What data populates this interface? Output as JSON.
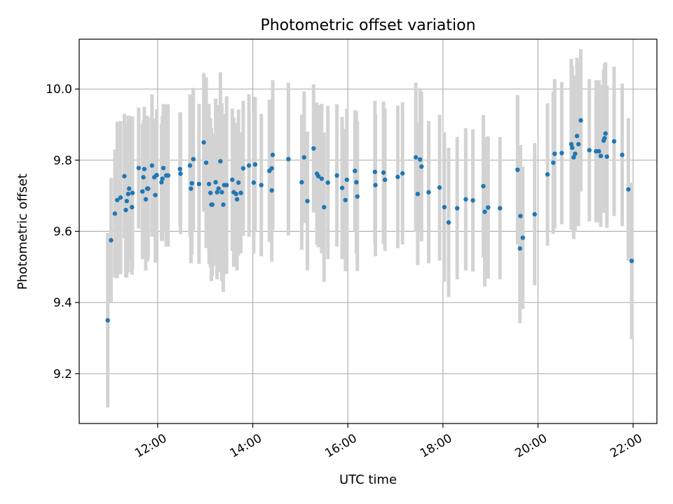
{
  "chart_data": {
    "type": "scatter",
    "title": "Photometric offset variation",
    "xlabel": "UTC time",
    "ylabel": "Photometric offset",
    "x_unit": "hours UTC (decimal)",
    "xlim": [
      10.35,
      22.5
    ],
    "ylim": [
      9.06,
      10.14
    ],
    "x_ticks": [
      {
        "value": 12,
        "label": "12:00"
      },
      {
        "value": 14,
        "label": "14:00"
      },
      {
        "value": 16,
        "label": "16:00"
      },
      {
        "value": 18,
        "label": "18:00"
      },
      {
        "value": 20,
        "label": "20:00"
      },
      {
        "value": 22,
        "label": "22:00"
      }
    ],
    "y_ticks": [
      {
        "value": 9.2,
        "label": "9.2"
      },
      {
        "value": 9.4,
        "label": "9.4"
      },
      {
        "value": 9.6,
        "label": "9.6"
      },
      {
        "value": 9.8,
        "label": "9.8"
      },
      {
        "value": 10.0,
        "label": "10.0"
      }
    ],
    "grid": true,
    "colors": {
      "point": "#1f77b4",
      "errorbar": "#d3d3d3",
      "grid": "#b0b0b0"
    },
    "series": [
      {
        "points": [
          [
            10.95,
            9.35,
            0.245
          ],
          [
            11.02,
            9.575,
            0.175
          ],
          [
            11.1,
            9.65,
            0.18
          ],
          [
            11.15,
            9.688,
            0.22
          ],
          [
            11.22,
            9.695,
            0.215
          ],
          [
            11.3,
            9.755,
            0.175
          ],
          [
            11.33,
            9.66,
            0.19
          ],
          [
            11.35,
            9.685,
            0.215
          ],
          [
            11.38,
            9.705,
            0.22
          ],
          [
            11.4,
            9.72,
            0.205
          ],
          [
            11.46,
            9.668,
            0.19
          ],
          [
            11.47,
            9.708,
            0.215
          ],
          [
            11.6,
            9.778,
            0.17
          ],
          [
            11.68,
            9.712,
            0.19
          ],
          [
            11.7,
            9.752,
            0.16
          ],
          [
            11.72,
            9.775,
            0.175
          ],
          [
            11.75,
            9.69,
            0.2
          ],
          [
            11.78,
            9.72,
            0.205
          ],
          [
            11.8,
            9.72,
            0.2
          ],
          [
            11.88,
            9.785,
            0.2
          ],
          [
            11.93,
            9.752,
            0.165
          ],
          [
            11.95,
            9.702,
            0.19
          ],
          [
            11.98,
            9.758,
            0.185
          ],
          [
            12.08,
            9.738,
            0.165
          ],
          [
            12.1,
            9.748,
            0.175
          ],
          [
            12.12,
            9.778,
            0.18
          ],
          [
            12.18,
            9.757,
            0.2
          ],
          [
            12.22,
            9.757,
            0.2
          ],
          [
            12.47,
            9.775,
            0.16
          ],
          [
            12.48,
            9.762,
            0.17
          ],
          [
            12.68,
            9.785,
            0.2
          ],
          [
            12.7,
            9.72,
            0.21
          ],
          [
            12.72,
            9.735,
            0.2
          ],
          [
            12.75,
            9.803,
            0.2
          ],
          [
            12.87,
            9.733,
            0.225
          ],
          [
            12.97,
            9.85,
            0.195
          ],
          [
            13.02,
            9.793,
            0.24
          ],
          [
            13.08,
            9.733,
            0.225
          ],
          [
            13.11,
            9.708,
            0.21
          ],
          [
            13.13,
            9.675,
            0.215
          ],
          [
            13.15,
            9.675,
            0.2
          ],
          [
            13.22,
            9.738,
            0.235
          ],
          [
            13.25,
            9.71,
            0.245
          ],
          [
            13.28,
            9.72,
            0.235
          ],
          [
            13.32,
            9.797,
            0.25
          ],
          [
            13.35,
            9.71,
            0.25
          ],
          [
            13.38,
            9.675,
            0.245
          ],
          [
            13.4,
            9.73,
            0.2
          ],
          [
            13.45,
            9.73,
            0.25
          ],
          [
            13.57,
            9.745,
            0.2
          ],
          [
            13.6,
            9.71,
            0.21
          ],
          [
            13.65,
            9.705,
            0.2
          ],
          [
            13.67,
            9.69,
            0.2
          ],
          [
            13.7,
            9.737,
            0.205
          ],
          [
            13.75,
            9.708,
            0.17
          ],
          [
            13.8,
            9.777,
            0.19
          ],
          [
            13.92,
            9.785,
            0.2
          ],
          [
            14.02,
            9.737,
            0.2
          ],
          [
            14.05,
            9.788,
            0.19
          ],
          [
            14.18,
            9.73,
            0.2
          ],
          [
            14.35,
            9.77,
            0.2
          ],
          [
            14.4,
            9.715,
            0.2
          ],
          [
            14.42,
            9.815,
            0.21
          ],
          [
            14.4,
            9.777,
            0.18
          ],
          [
            14.75,
            9.803,
            0.215
          ],
          [
            15.03,
            9.738,
            0.19
          ],
          [
            15.08,
            9.808,
            0.185
          ],
          [
            15.15,
            9.685,
            0.195
          ],
          [
            15.28,
            9.833,
            0.18
          ],
          [
            15.35,
            9.762,
            0.2
          ],
          [
            15.38,
            9.755,
            0.2
          ],
          [
            15.45,
            9.748,
            0.21
          ],
          [
            15.5,
            9.668,
            0.21
          ],
          [
            15.58,
            9.737,
            0.215
          ],
          [
            15.77,
            9.757,
            0.2
          ],
          [
            15.88,
            9.722,
            0.2
          ],
          [
            15.95,
            9.688,
            0.2
          ],
          [
            15.98,
            9.745,
            0.2
          ],
          [
            16.15,
            9.77,
            0.17
          ],
          [
            16.18,
            9.738,
            0.2
          ],
          [
            16.2,
            9.698,
            0.21
          ],
          [
            16.57,
            9.767,
            0.2
          ],
          [
            16.58,
            9.73,
            0.2
          ],
          [
            16.75,
            9.765,
            0.2
          ],
          [
            16.78,
            9.745,
            0.2
          ],
          [
            17.05,
            9.753,
            0.2
          ],
          [
            17.15,
            9.763,
            0.2
          ],
          [
            17.43,
            9.808,
            0.21
          ],
          [
            17.47,
            9.705,
            0.2
          ],
          [
            17.52,
            9.802,
            0.2
          ],
          [
            17.55,
            9.782,
            0.21
          ],
          [
            17.7,
            9.71,
            0.2
          ],
          [
            17.93,
            9.723,
            0.205
          ],
          [
            18.03,
            9.668,
            0.21
          ],
          [
            18.12,
            9.625,
            0.21
          ],
          [
            18.3,
            9.665,
            0.2
          ],
          [
            18.48,
            9.69,
            0.2
          ],
          [
            18.63,
            9.687,
            0.2
          ],
          [
            18.85,
            9.727,
            0.2
          ],
          [
            18.88,
            9.655,
            0.21
          ],
          [
            18.95,
            9.667,
            0.2
          ],
          [
            19.2,
            9.665,
            0.2
          ],
          [
            19.57,
            9.773,
            0.21
          ],
          [
            19.62,
            9.552,
            0.21
          ],
          [
            19.63,
            9.643,
            0.2
          ],
          [
            19.68,
            9.582,
            0.2
          ],
          [
            19.93,
            9.648,
            0.2
          ],
          [
            20.2,
            9.76,
            0.2
          ],
          [
            20.32,
            9.793,
            0.2
          ],
          [
            20.35,
            9.818,
            0.21
          ],
          [
            20.5,
            9.82,
            0.2
          ],
          [
            20.7,
            9.845,
            0.24
          ],
          [
            20.72,
            9.835,
            0.23
          ],
          [
            20.75,
            9.808,
            0.23
          ],
          [
            20.78,
            9.818,
            0.22
          ],
          [
            20.82,
            9.868,
            0.22
          ],
          [
            20.85,
            9.845,
            0.23
          ],
          [
            20.9,
            9.912,
            0.2
          ],
          [
            21.08,
            9.828,
            0.2
          ],
          [
            21.22,
            9.825,
            0.2
          ],
          [
            21.28,
            9.825,
            0.2
          ],
          [
            21.32,
            9.812,
            0.2
          ],
          [
            21.38,
            9.855,
            0.2
          ],
          [
            21.4,
            9.862,
            0.21
          ],
          [
            21.42,
            9.875,
            0.2
          ],
          [
            21.45,
            9.81,
            0.2
          ],
          [
            21.6,
            9.853,
            0.21
          ],
          [
            21.77,
            9.815,
            0.2
          ],
          [
            21.9,
            9.718,
            0.2
          ],
          [
            21.97,
            9.517,
            0.22
          ]
        ]
      }
    ]
  }
}
